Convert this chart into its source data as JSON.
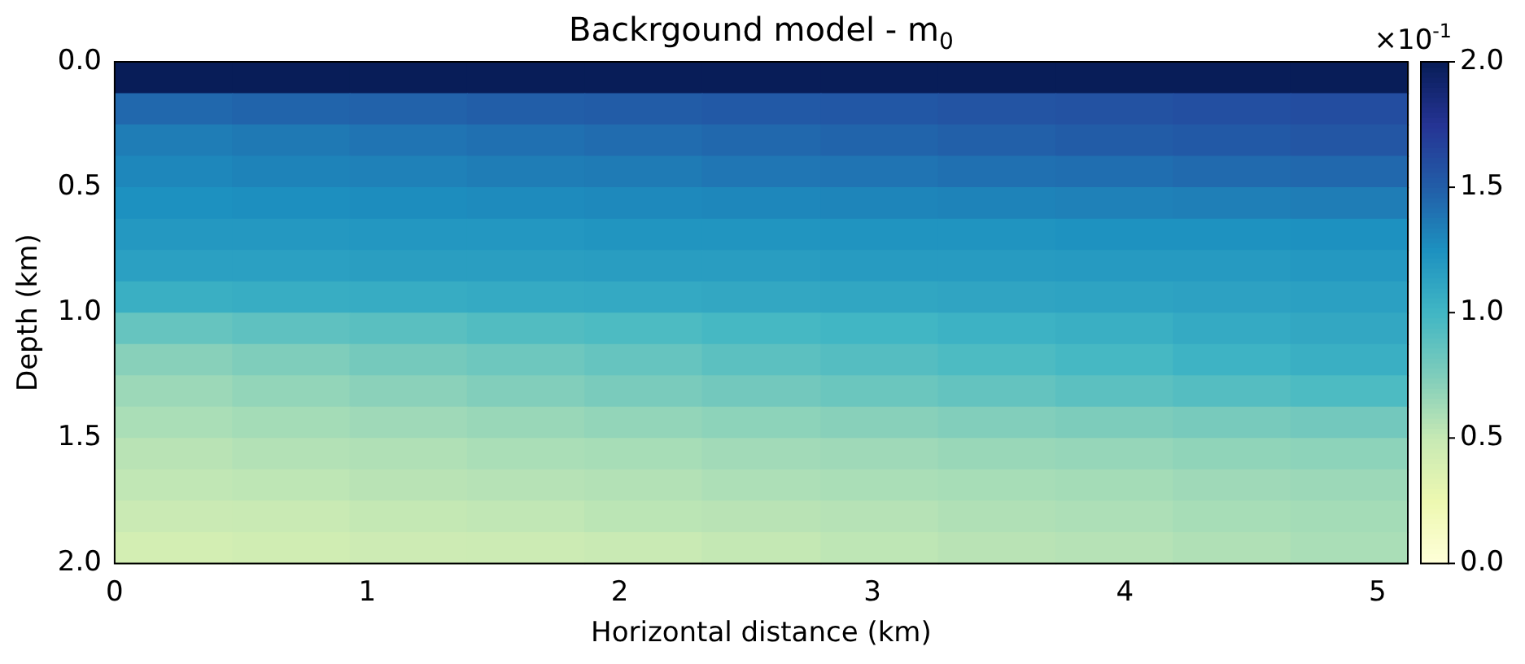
{
  "chart_data": {
    "type": "heatmap",
    "title": "Backrgound model - m$_{0}$",
    "xlabel": "Horizontal distance (km)",
    "ylabel": "Depth (km)",
    "clabel": "×10$^{-1}$",
    "x": [
      0.23,
      0.7,
      1.16,
      1.63,
      2.09,
      2.56,
      3.03,
      3.49,
      3.96,
      4.42,
      4.89
    ],
    "y": [
      0.0625,
      0.1875,
      0.3125,
      0.4375,
      0.5625,
      0.6875,
      0.8125,
      0.9375,
      1.0625,
      1.1875,
      1.3125,
      1.4375,
      1.5625,
      1.6875,
      1.8125,
      1.9375
    ],
    "xlim": [
      0,
      5.12
    ],
    "xticks": [
      0,
      1,
      2,
      3,
      4,
      5
    ],
    "ylim": [
      2.0,
      0.0
    ],
    "yticks": [
      {
        "value": 0,
        "label": "0.0"
      },
      {
        "value": 0.5,
        "label": "0.5"
      },
      {
        "value": 1,
        "label": "1.0"
      },
      {
        "value": 1.5,
        "label": "1.5"
      },
      {
        "value": 2,
        "label": "2.0"
      }
    ],
    "clim": [
      0,
      2
    ],
    "cticks": [
      {
        "value": 0,
        "label": "0.0"
      },
      {
        "value": 0.5,
        "label": "0.5"
      },
      {
        "value": 1,
        "label": "1.0"
      },
      {
        "value": 1.5,
        "label": "1.5"
      },
      {
        "value": 2,
        "label": "2.0"
      }
    ],
    "cells": [
      [
        2.0,
        2.0,
        2.0,
        2.0,
        2.0,
        2.0,
        2.0,
        2.0,
        2.0,
        2.0,
        2.0
      ],
      [
        1.45,
        1.47,
        1.48,
        1.5,
        1.51,
        1.53,
        1.54,
        1.56,
        1.57,
        1.59,
        1.6
      ],
      [
        1.35,
        1.37,
        1.39,
        1.41,
        1.43,
        1.45,
        1.47,
        1.49,
        1.51,
        1.53,
        1.55
      ],
      [
        1.3,
        1.32,
        1.33,
        1.35,
        1.36,
        1.38,
        1.39,
        1.41,
        1.42,
        1.44,
        1.45
      ],
      [
        1.25,
        1.26,
        1.27,
        1.28,
        1.29,
        1.3,
        1.31,
        1.32,
        1.33,
        1.34,
        1.35
      ],
      [
        1.2,
        1.2,
        1.21,
        1.21,
        1.22,
        1.22,
        1.23,
        1.23,
        1.24,
        1.24,
        1.25
      ],
      [
        1.15,
        1.15,
        1.16,
        1.16,
        1.17,
        1.17,
        1.18,
        1.18,
        1.19,
        1.19,
        1.2
      ],
      [
        1.05,
        1.06,
        1.07,
        1.08,
        1.09,
        1.1,
        1.11,
        1.12,
        1.13,
        1.14,
        1.15
      ],
      [
        0.85,
        0.88,
        0.9,
        0.93,
        0.95,
        0.98,
        1.0,
        1.03,
        1.05,
        1.08,
        1.1
      ],
      [
        0.72,
        0.75,
        0.79,
        0.82,
        0.85,
        0.89,
        0.92,
        0.95,
        0.98,
        1.02,
        1.05
      ],
      [
        0.65,
        0.68,
        0.71,
        0.74,
        0.77,
        0.8,
        0.83,
        0.86,
        0.89,
        0.92,
        0.95
      ],
      [
        0.6,
        0.62,
        0.64,
        0.66,
        0.68,
        0.7,
        0.72,
        0.74,
        0.76,
        0.78,
        0.8
      ],
      [
        0.55,
        0.57,
        0.58,
        0.6,
        0.61,
        0.63,
        0.64,
        0.66,
        0.67,
        0.69,
        0.7
      ],
      [
        0.52,
        0.53,
        0.55,
        0.56,
        0.57,
        0.59,
        0.6,
        0.61,
        0.62,
        0.64,
        0.65
      ],
      [
        0.48,
        0.49,
        0.51,
        0.52,
        0.54,
        0.55,
        0.56,
        0.58,
        0.59,
        0.61,
        0.62
      ],
      [
        0.42,
        0.44,
        0.46,
        0.47,
        0.49,
        0.51,
        0.53,
        0.55,
        0.56,
        0.58,
        0.6
      ]
    ]
  }
}
